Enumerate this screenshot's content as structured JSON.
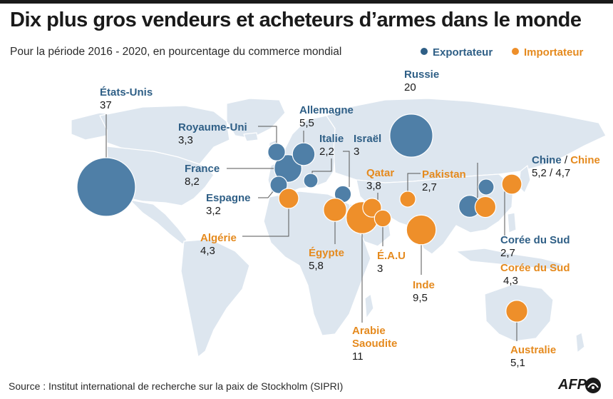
{
  "title": "Dix plus gros vendeurs et acheteurs d’armes dans le monde",
  "subtitle": "Pour la période 2016 - 2020, en pourcentage du commerce mondial",
  "legend": {
    "exporter": "Exportateur",
    "importer": "Importateur"
  },
  "colors": {
    "exporter": "#4f7fa7",
    "importer": "#ee8f2a",
    "exporter_text": "#2f5f86",
    "importer_text": "#e58a1e",
    "land": "#dde6ef"
  },
  "exporters": [
    {
      "name": "États-Unis",
      "value": "37"
    },
    {
      "name": "Russie",
      "value": "20"
    },
    {
      "name": "France",
      "value": "8,2"
    },
    {
      "name": "Allemagne",
      "value": "5,5"
    },
    {
      "name": "Royaume-Uni",
      "value": "3,3"
    },
    {
      "name": "Espagne",
      "value": "3,2"
    },
    {
      "name": "Italie",
      "value": "2,2"
    },
    {
      "name": "Israël",
      "value": "3"
    },
    {
      "name": "Corée du Sud",
      "value": "2,7"
    }
  ],
  "importers": [
    {
      "name": "Arabie Saoudite",
      "value": "11"
    },
    {
      "name": "Inde",
      "value": "9,5"
    },
    {
      "name": "Égypte",
      "value": "5,8"
    },
    {
      "name": "Australie",
      "value": "5,1"
    },
    {
      "name": "Algérie",
      "value": "4,3"
    },
    {
      "name": "Corée du Sud",
      "value": "4,3"
    },
    {
      "name": "Qatar",
      "value": "3,8"
    },
    {
      "name": "É.A.U",
      "value": "3"
    },
    {
      "name": "Pakistan",
      "value": "2,7"
    }
  ],
  "china": {
    "exporter_name": "Chine",
    "separator": "/",
    "importer_name": "Chine",
    "value": "5,2 / 4,7",
    "exporter_value": 5.2,
    "importer_value": 4.7
  },
  "source": "Source : Institut international de recherche sur la paix de Stockholm (SIPRI)",
  "credit": "AFP"
}
